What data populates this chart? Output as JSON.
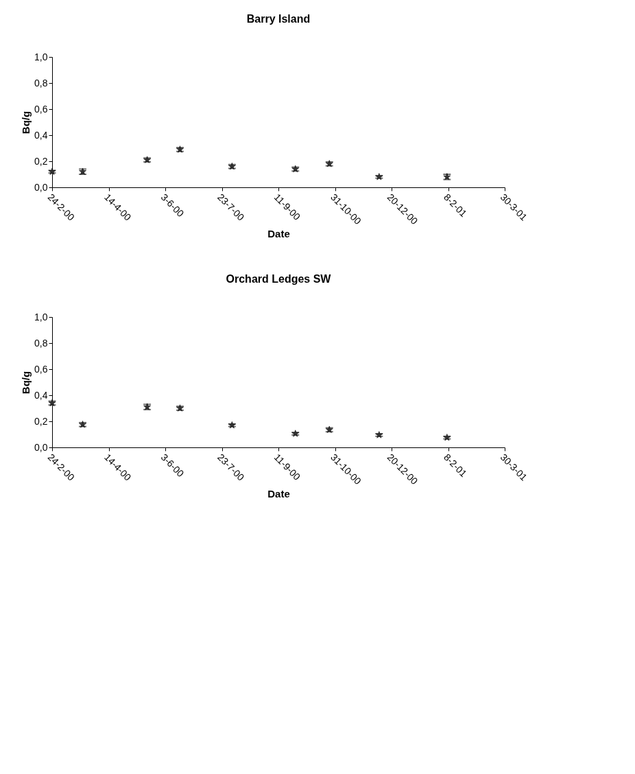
{
  "chart_data": [
    {
      "type": "scatter",
      "title": "Barry Island",
      "xlabel": "Date",
      "ylabel": "Bq/g",
      "x": [
        "2000-02-24",
        "2000-03-22",
        "2000-05-18",
        "2000-06-16",
        "2000-08-01",
        "2000-09-26",
        "2000-10-26",
        "2000-12-09",
        "2001-02-07"
      ],
      "series": [
        {
          "color": "#333333",
          "values": [
            0.12,
            0.12,
            0.21,
            0.29,
            0.16,
            0.14,
            0.18,
            0.08,
            0.08
          ],
          "errors": [
            0.01,
            0.02,
            0.015,
            0.015,
            0.015,
            0.015,
            0.015,
            0.01,
            0.02
          ]
        }
      ],
      "xlim": [
        "2000-02-24",
        "2001-03-30"
      ],
      "xticks": [
        {
          "value": "2000-02-24",
          "label": "24-2-00"
        },
        {
          "value": "2000-04-14",
          "label": "14-4-00"
        },
        {
          "value": "2000-06-03",
          "label": "3-6-00"
        },
        {
          "value": "2000-07-23",
          "label": "23-7-00"
        },
        {
          "value": "2000-09-11",
          "label": "11-9-00"
        },
        {
          "value": "2000-10-31",
          "label": "31-10-00"
        },
        {
          "value": "2000-12-20",
          "label": "20-12-00"
        },
        {
          "value": "2001-02-08",
          "label": "8-2-01"
        },
        {
          "value": "2001-03-30",
          "label": "30-3-01"
        }
      ],
      "ylim": [
        0,
        1
      ],
      "yticks": [
        {
          "value": 0,
          "label": "0,0"
        },
        {
          "value": 0.2,
          "label": "0,2"
        },
        {
          "value": 0.4,
          "label": "0,4"
        },
        {
          "value": 0.6,
          "label": "0,6"
        },
        {
          "value": 0.8,
          "label": "0,8"
        },
        {
          "value": 1,
          "label": "1,0"
        }
      ],
      "marker": "star",
      "grid": false
    },
    {
      "type": "scatter",
      "title": "Orchard Ledges SW",
      "xlabel": "Date",
      "ylabel": "Bq/g",
      "x": [
        "2000-02-24",
        "2000-03-22",
        "2000-05-18",
        "2000-06-16",
        "2000-08-01",
        "2000-09-26",
        "2000-10-26",
        "2000-12-09",
        "2001-02-07"
      ],
      "series": [
        {
          "color": "#333333",
          "values": [
            0.34,
            0.175,
            0.31,
            0.3,
            0.17,
            0.105,
            0.135,
            0.095,
            0.075
          ],
          "errors": [
            0.015,
            0.015,
            0.02,
            0.015,
            0.01,
            0.01,
            0.015,
            0.01,
            0.01
          ]
        }
      ],
      "xlim": [
        "2000-02-24",
        "2001-03-30"
      ],
      "xticks": [
        {
          "value": "2000-02-24",
          "label": "24-2-00"
        },
        {
          "value": "2000-04-14",
          "label": "14-4-00"
        },
        {
          "value": "2000-06-03",
          "label": "3-6-00"
        },
        {
          "value": "2000-07-23",
          "label": "23-7-00"
        },
        {
          "value": "2000-09-11",
          "label": "11-9-00"
        },
        {
          "value": "2000-10-31",
          "label": "31-10-00"
        },
        {
          "value": "2000-12-20",
          "label": "20-12-00"
        },
        {
          "value": "2001-02-08",
          "label": "8-2-01"
        },
        {
          "value": "2001-03-30",
          "label": "30-3-01"
        }
      ],
      "ylim": [
        0,
        1
      ],
      "yticks": [
        {
          "value": 0,
          "label": "0,0"
        },
        {
          "value": 0.2,
          "label": "0,2"
        },
        {
          "value": 0.4,
          "label": "0,4"
        },
        {
          "value": 0.6,
          "label": "0,6"
        },
        {
          "value": 0.8,
          "label": "0,8"
        },
        {
          "value": 1,
          "label": "1,0"
        }
      ],
      "marker": "star",
      "grid": false
    }
  ]
}
